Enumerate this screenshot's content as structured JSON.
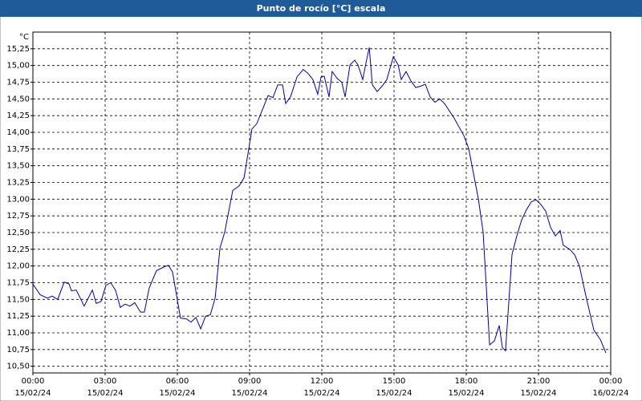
{
  "chart_data": {
    "type": "line",
    "title": "Punto de rocío [°C] escala",
    "y_unit": "°C",
    "xlim": [
      0,
      24
    ],
    "ylim": [
      10.4,
      15.5
    ],
    "xticks": [
      {
        "value": 0,
        "label": "00:00"
      },
      {
        "value": 3,
        "label": "03:00"
      },
      {
        "value": 6,
        "label": "06:00"
      },
      {
        "value": 9,
        "label": "09:00"
      },
      {
        "value": 12,
        "label": "12:00"
      },
      {
        "value": 15,
        "label": "15:00"
      },
      {
        "value": 18,
        "label": "18:00"
      },
      {
        "value": 21,
        "label": "21:00"
      },
      {
        "value": 24,
        "label": "00:00"
      }
    ],
    "xtick_dates": [
      "15/02/24",
      "15/02/24",
      "15/02/24",
      "15/02/24",
      "15/02/24",
      "15/02/24",
      "15/02/24",
      "15/02/24",
      "16/02/24"
    ],
    "yticks": [
      {
        "value": 10.5,
        "label": "10,50"
      },
      {
        "value": 10.75,
        "label": "10,75"
      },
      {
        "value": 11,
        "label": "11,00"
      },
      {
        "value": 11.25,
        "label": "11,25"
      },
      {
        "value": 11.5,
        "label": "11,50"
      },
      {
        "value": 11.75,
        "label": "11,75"
      },
      {
        "value": 12,
        "label": "12,00"
      },
      {
        "value": 12.25,
        "label": "12,25"
      },
      {
        "value": 12.5,
        "label": "12,50"
      },
      {
        "value": 12.75,
        "label": "12,75"
      },
      {
        "value": 13,
        "label": "13,00"
      },
      {
        "value": 13.25,
        "label": "13,25"
      },
      {
        "value": 13.5,
        "label": "13,50"
      },
      {
        "value": 13.75,
        "label": "13,75"
      },
      {
        "value": 14,
        "label": "14,00"
      },
      {
        "value": 14.25,
        "label": "14,25"
      },
      {
        "value": 14.5,
        "label": "14,50"
      },
      {
        "value": 14.75,
        "label": "14,75"
      },
      {
        "value": 15,
        "label": "15,00"
      },
      {
        "value": 15.25,
        "label": "15,25"
      }
    ],
    "grid": true,
    "x": [
      0,
      0.3,
      0.6,
      0.8,
      1.03,
      1.3,
      1.5,
      1.6,
      1.8,
      2.13,
      2.47,
      2.63,
      2.83,
      3.03,
      3.23,
      3.43,
      3.63,
      3.83,
      4.03,
      4.23,
      4.47,
      4.63,
      4.83,
      5.13,
      5.47,
      5.63,
      5.8,
      6.13,
      6.37,
      6.57,
      6.77,
      6.97,
      7.17,
      7.37,
      7.57,
      7.77,
      7.97,
      8.3,
      8.57,
      8.77,
      9.1,
      9.3,
      9.5,
      9.77,
      9.97,
      10.17,
      10.37,
      10.5,
      10.7,
      10.97,
      11.23,
      11.43,
      11.63,
      11.83,
      11.97,
      12.1,
      12.3,
      12.43,
      12.63,
      12.83,
      12.97,
      13.17,
      13.37,
      13.5,
      13.7,
      13.83,
      13.97,
      14.1,
      14.3,
      14.5,
      14.7,
      14.97,
      15.17,
      15.3,
      15.5,
      15.7,
      15.9,
      16.1,
      16.3,
      16.5,
      16.7,
      16.9,
      17.1,
      17.5,
      17.9,
      18.1,
      18.5,
      18.7,
      18.97,
      19.17,
      19.37,
      19.5,
      19.63,
      19.9,
      20.1,
      20.3,
      20.5,
      20.7,
      20.9,
      21.1,
      21.3,
      21.5,
      21.7,
      21.9,
      22.03,
      22.3,
      22.5,
      22.7,
      22.97,
      23.3,
      23.57,
      23.8
    ],
    "series": [
      {
        "name": "Punto de rocío",
        "color": "#0000a0",
        "values": [
          11.73,
          11.57,
          11.52,
          11.55,
          11.5,
          11.76,
          11.73,
          11.63,
          11.64,
          11.4,
          11.64,
          11.44,
          11.47,
          11.71,
          11.75,
          11.64,
          11.38,
          11.43,
          11.4,
          11.45,
          11.31,
          11.31,
          11.67,
          11.93,
          11.99,
          12.01,
          11.91,
          11.22,
          11.21,
          11.16,
          11.23,
          11.06,
          11.25,
          11.27,
          11.52,
          12.27,
          12.51,
          13.13,
          13.2,
          13.32,
          14.05,
          14.13,
          14.31,
          14.55,
          14.52,
          14.71,
          14.71,
          14.43,
          14.53,
          14.83,
          14.94,
          14.88,
          14.79,
          14.57,
          14.83,
          14.84,
          14.53,
          14.91,
          14.81,
          14.75,
          14.53,
          15.01,
          15.08,
          15.01,
          14.79,
          15.03,
          15.27,
          14.71,
          14.61,
          14.69,
          14.79,
          15.13,
          15.01,
          14.79,
          14.91,
          14.77,
          14.67,
          14.69,
          14.72,
          14.53,
          14.45,
          14.5,
          14.43,
          14.21,
          13.95,
          13.76,
          13.01,
          12.51,
          10.82,
          10.88,
          11.11,
          10.78,
          10.73,
          12.17,
          12.45,
          12.69,
          12.84,
          12.96,
          12.99,
          12.92,
          12.82,
          12.58,
          12.45,
          12.53,
          12.31,
          12.25,
          12.17,
          12.0,
          11.55,
          11.04,
          10.9,
          10.7
        ]
      }
    ]
  }
}
